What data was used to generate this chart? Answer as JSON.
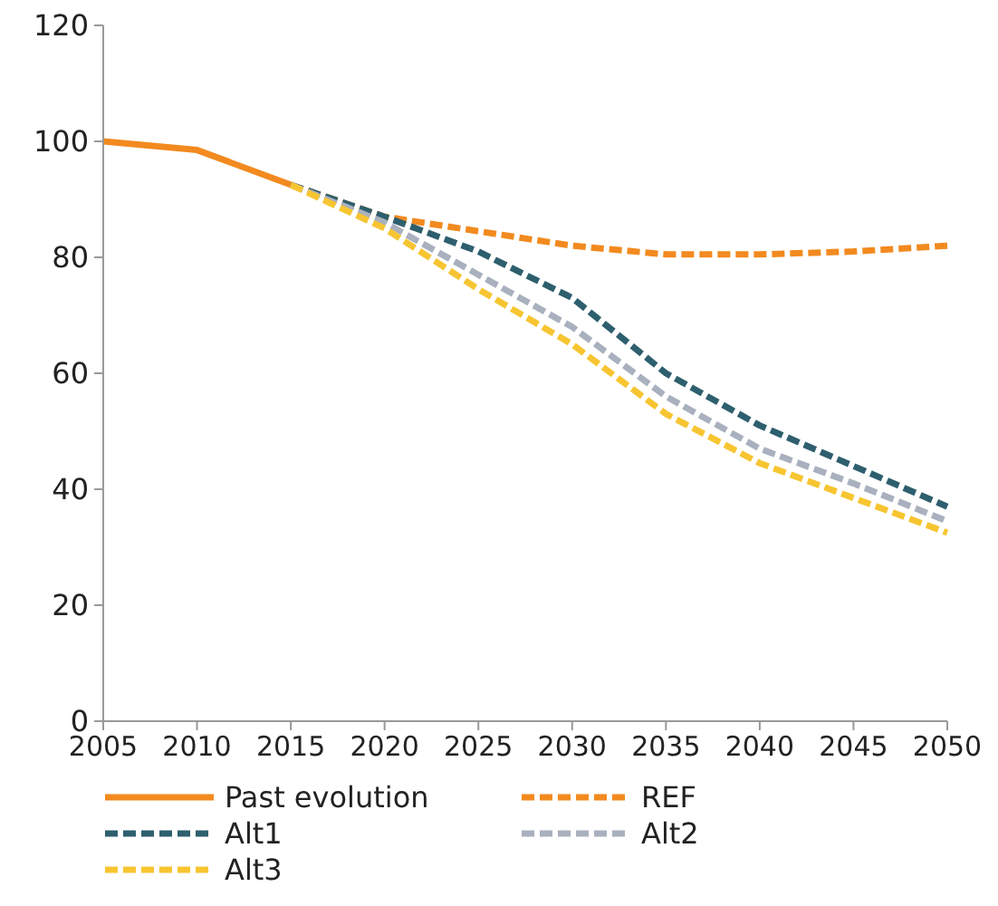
{
  "chart_data": {
    "type": "line",
    "x": [
      2005,
      2010,
      2015,
      2020,
      2025,
      2030,
      2035,
      2040,
      2045,
      2050
    ],
    "series": [
      {
        "name": "Past evolution",
        "color": "#f28a1f",
        "line_style": "solid",
        "values": [
          100,
          98.5,
          92.5,
          null,
          null,
          null,
          null,
          null,
          null,
          null
        ]
      },
      {
        "name": "REF",
        "color": "#f28a1f",
        "line_style": "dashed",
        "values": [
          null,
          null,
          92.5,
          87,
          84.5,
          82,
          80.5,
          80.5,
          81,
          82
        ]
      },
      {
        "name": "Alt1",
        "color": "#2e5f6e",
        "line_style": "dashed",
        "values": [
          null,
          null,
          92.5,
          87,
          81,
          73,
          60,
          51,
          44,
          37
        ]
      },
      {
        "name": "Alt2",
        "color": "#a9b0be",
        "line_style": "dashed",
        "values": [
          null,
          null,
          92.5,
          86,
          77,
          68,
          56,
          47,
          41,
          34.5
        ]
      },
      {
        "name": "Alt3",
        "color": "#f7c531",
        "line_style": "dashed",
        "values": [
          null,
          null,
          92.5,
          85,
          74.5,
          65,
          53,
          44.5,
          38.5,
          32.5
        ]
      }
    ],
    "xlim": [
      2005,
      2050
    ],
    "xticks": [
      2005,
      2010,
      2015,
      2020,
      2025,
      2030,
      2035,
      2040,
      2045,
      2050
    ],
    "ylim": [
      0,
      120
    ],
    "yticks": [
      0,
      20,
      40,
      60,
      80,
      100,
      120
    ],
    "grid": false,
    "legend": "bottom",
    "marker": "none"
  }
}
